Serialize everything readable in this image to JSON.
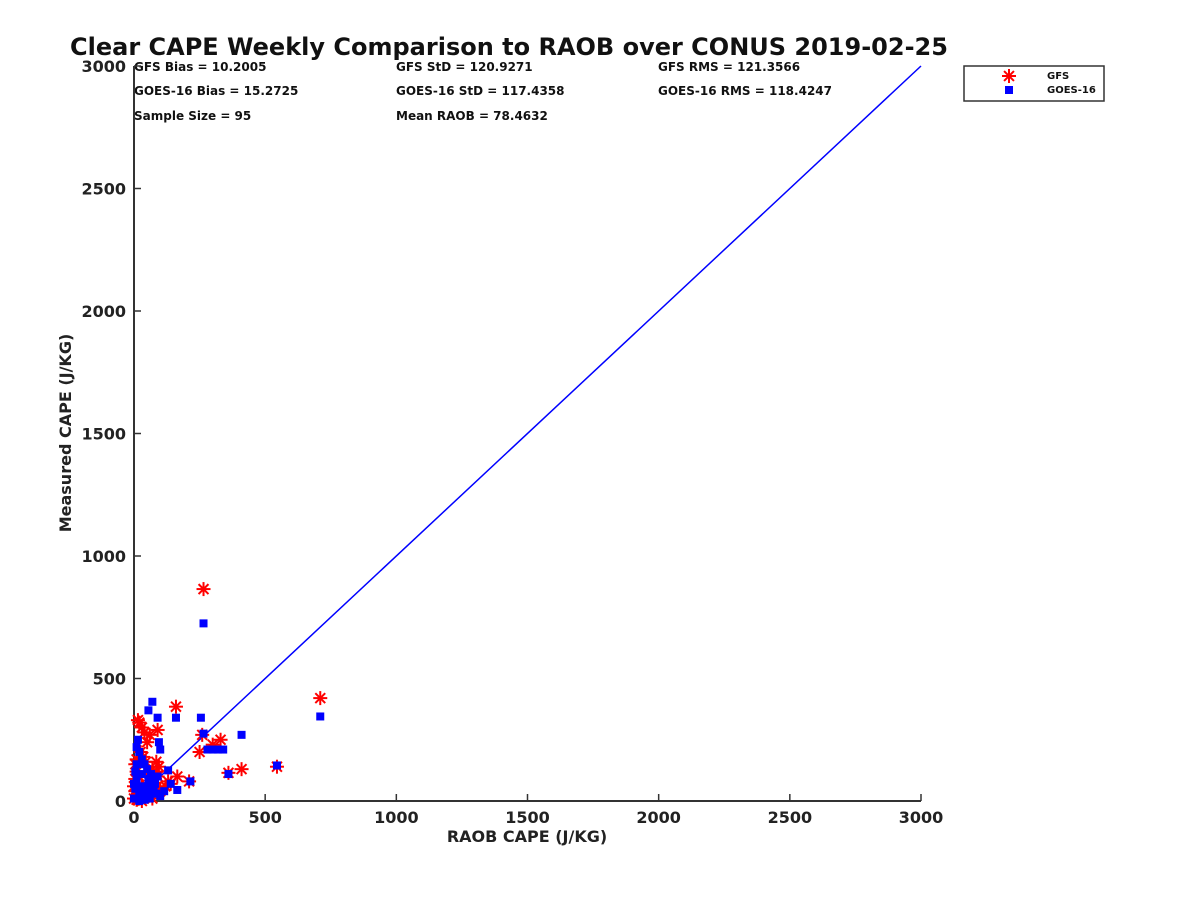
{
  "chart_data": {
    "type": "scatter",
    "title": "Clear CAPE Weekly Comparison to RAOB over CONUS 2019-02-25",
    "xlabel": "RAOB CAPE (J/KG)",
    "ylabel": "Measured CAPE (J/KG)",
    "xlim": [
      0,
      3000
    ],
    "ylim": [
      0,
      3000
    ],
    "xticks": [
      "0",
      "500",
      "1000",
      "1500",
      "2000",
      "2500",
      "3000"
    ],
    "yticks": [
      "0",
      "500",
      "1000",
      "1500",
      "2000",
      "2500",
      "3000"
    ],
    "grid": false,
    "legend_position": "top-right",
    "stats": [
      "GFS Bias = 10.2005",
      "GFS StD = 120.9271",
      "GFS RMS = 121.3566",
      "GOES-16 Bias = 15.2725",
      "GOES-16 StD = 117.4358",
      "GOES-16 RMS = 118.4247",
      "Sample Size = 95",
      "Mean RAOB = 78.4632"
    ],
    "reference_line": {
      "x": [
        0,
        3000
      ],
      "y": [
        0,
        3000
      ],
      "color": "#0000ff"
    },
    "series": [
      {
        "name": "GFS",
        "marker": "asterisk",
        "color": "#ff0000",
        "x": [
          265,
          710,
          160,
          260,
          250,
          330,
          300,
          410,
          360,
          545,
          210,
          165,
          130,
          90,
          85,
          70,
          60,
          50,
          40,
          30,
          20,
          15,
          10,
          5,
          0,
          0,
          5,
          10,
          20,
          30,
          40,
          55,
          70,
          85,
          95,
          100,
          25,
          35,
          45,
          65,
          75,
          80,
          15,
          5,
          10,
          20,
          30,
          50,
          60,
          90,
          100,
          120,
          140
        ],
        "y": [
          865,
          420,
          385,
          270,
          200,
          250,
          230,
          130,
          115,
          140,
          80,
          100,
          80,
          290,
          160,
          130,
          270,
          240,
          280,
          300,
          320,
          330,
          170,
          150,
          10,
          60,
          90,
          120,
          100,
          60,
          40,
          20,
          10,
          120,
          140,
          50,
          200,
          180,
          160,
          70,
          30,
          90,
          30,
          40,
          5,
          10,
          0,
          60,
          110,
          100,
          40,
          60,
          70
        ]
      },
      {
        "name": "GOES-16",
        "marker": "square",
        "color": "#0000ff",
        "x": [
          265,
          710,
          70,
          55,
          90,
          160,
          255,
          265,
          300,
          320,
          340,
          280,
          410,
          545,
          360,
          215,
          165,
          130,
          100,
          95,
          80,
          65,
          50,
          40,
          30,
          20,
          15,
          10,
          5,
          0,
          0,
          5,
          10,
          20,
          25,
          35,
          45,
          55,
          60,
          75,
          85,
          100,
          115,
          140,
          10,
          20,
          30,
          40,
          50,
          60,
          70,
          80,
          90
        ],
        "y": [
          725,
          345,
          405,
          370,
          340,
          340,
          340,
          275,
          210,
          210,
          210,
          210,
          270,
          145,
          110,
          80,
          45,
          125,
          210,
          240,
          100,
          110,
          130,
          150,
          170,
          200,
          250,
          220,
          120,
          10,
          70,
          50,
          90,
          30,
          60,
          20,
          40,
          80,
          10,
          60,
          30,
          20,
          40,
          70,
          150,
          0,
          110,
          5,
          50,
          90,
          40,
          70,
          100
        ]
      }
    ]
  }
}
